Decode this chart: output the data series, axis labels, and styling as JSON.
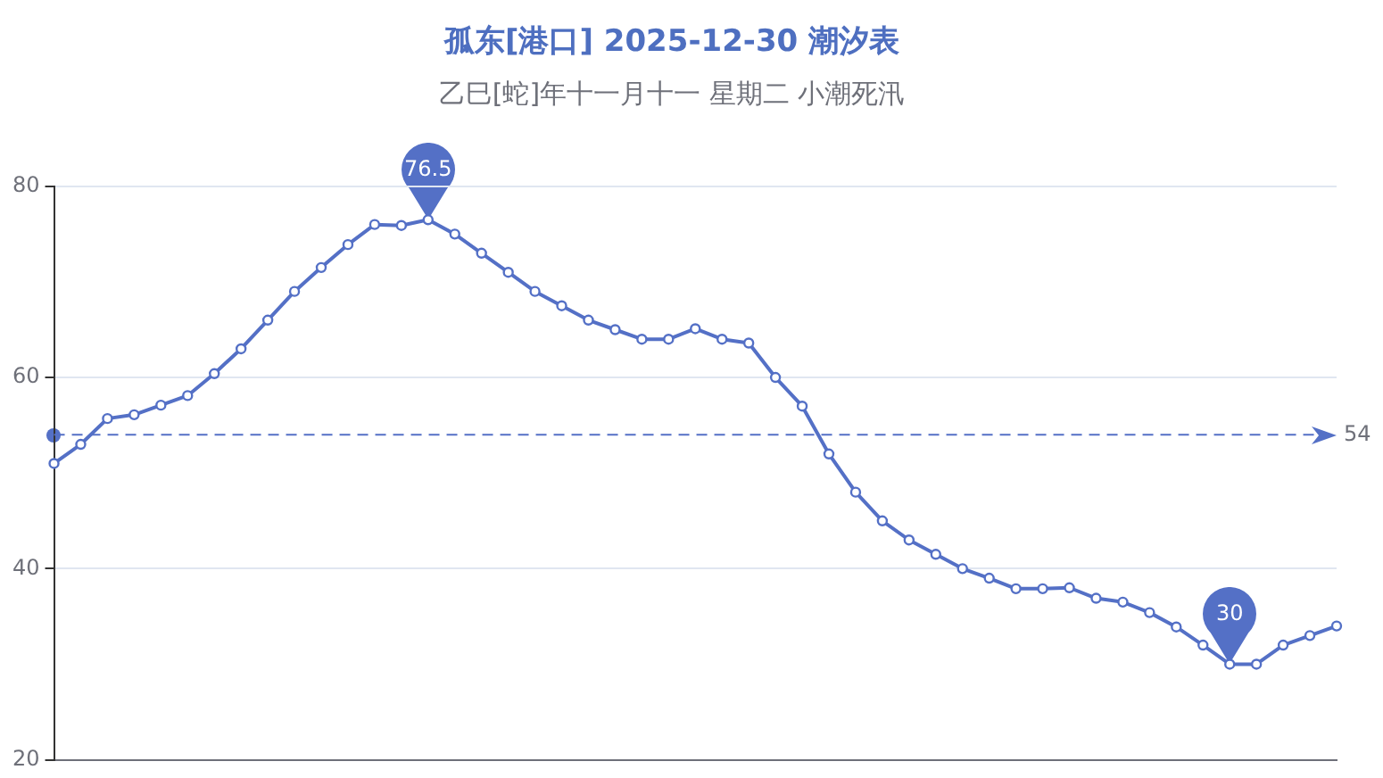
{
  "chart_data": {
    "type": "line",
    "title": "孤东[港口] 2025-12-30 潮汐表",
    "subtitle": "乙巳[蛇]年十一月十一 星期二 小潮死汛",
    "categories": [
      null,
      null,
      null,
      null,
      null,
      null,
      null,
      null,
      null,
      null,
      null,
      null,
      null,
      null,
      null,
      null,
      null,
      null,
      null,
      null,
      null,
      null,
      null,
      null,
      null,
      null,
      null,
      null,
      null,
      null,
      null,
      null,
      null,
      null,
      null,
      null,
      null,
      null,
      null,
      null,
      null,
      null,
      null,
      null,
      null,
      null,
      null,
      null,
      null
    ],
    "series": [
      {
        "color": "#5470c6",
        "values": [
          51,
          53,
          55.7,
          56.1,
          57.1,
          58.1,
          60.4,
          63,
          66,
          69,
          71.5,
          73.9,
          76,
          75.9,
          76.5,
          75,
          73,
          71,
          69,
          67.5,
          66,
          65,
          64,
          64,
          65.1,
          64,
          63.6,
          60,
          57,
          52,
          48,
          45,
          43,
          41.5,
          40,
          39,
          37.9,
          37.9,
          38,
          36.9,
          36.5,
          35.4,
          33.9,
          32,
          30,
          30,
          32,
          33,
          34
        ]
      }
    ],
    "ylim": [
      20,
      80
    ],
    "yticks": [
      20,
      40,
      60,
      80
    ],
    "grid": "y",
    "marker": "circle",
    "legend": false,
    "line_style": "solid",
    "ref_lines": [
      {
        "axis": "y",
        "value": 54,
        "label": "54",
        "color": "#5470c6",
        "line_style": "dashed"
      }
    ],
    "annotations": [
      {
        "text": "76.5",
        "y": 76.5
      },
      {
        "text": "30",
        "y": 30
      }
    ]
  }
}
